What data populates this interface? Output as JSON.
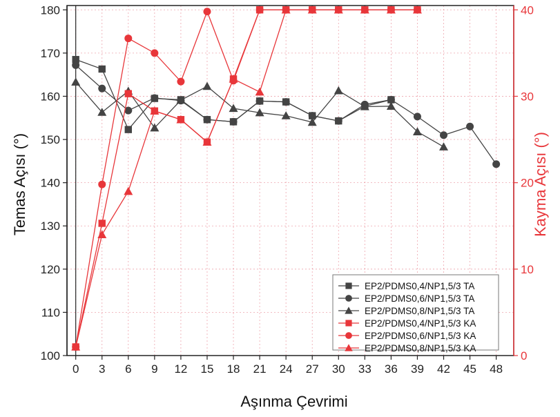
{
  "chart_data": {
    "type": "line",
    "xlabel": "Aşınma Çevrimi",
    "ylabel_left": "Temas Açısı (°)",
    "ylabel_right": "Kayma Açısı (°)",
    "x_ticks": [
      0,
      3,
      6,
      9,
      12,
      15,
      18,
      21,
      24,
      27,
      30,
      33,
      36,
      39,
      42,
      45,
      48
    ],
    "xlim": [
      -1,
      50
    ],
    "ylim_left": [
      100,
      181
    ],
    "yticks_left": [
      100,
      110,
      120,
      130,
      140,
      150,
      160,
      170,
      180
    ],
    "ylim_right": [
      0,
      40.5
    ],
    "yticks_right": [
      0,
      10,
      20,
      30,
      40
    ],
    "grid": true,
    "legend_position": "bottom-right",
    "colors": {
      "ta": "#444444",
      "ka": "#e8363a",
      "right_axis": "#e8363a",
      "grid": "#e05a6a"
    },
    "series": [
      {
        "name": "EP2/PDMS0,4/NP1,5/3 TA",
        "axis": "left",
        "marker": "square",
        "color": "#444444",
        "x": [
          0,
          3,
          6,
          9,
          12,
          15,
          18,
          21,
          24,
          27,
          30,
          33,
          36
        ],
        "y": [
          168.5,
          166.3,
          152.3,
          159.5,
          159.2,
          154.6,
          154.1,
          158.9,
          158.7,
          155.5,
          154.3,
          157.7,
          159.2
        ]
      },
      {
        "name": "EP2/PDMS0,6/NP1,5/3 TA",
        "axis": "left",
        "marker": "circle",
        "color": "#444444",
        "x": [
          0,
          3,
          6,
          9,
          12,
          15,
          18,
          21,
          24,
          27,
          30,
          33,
          36,
          39,
          42,
          45,
          48
        ],
        "y": [
          167.2,
          161.8,
          156.7,
          159.6,
          159.0,
          154.6,
          154.1,
          158.9,
          158.7,
          155.5,
          154.3,
          158.1,
          159.2,
          155.3,
          151.0,
          153.0,
          144.3
        ]
      },
      {
        "name": "EP2/PDMS0,8/NP1,5/3 TA",
        "axis": "left",
        "marker": "triangle",
        "color": "#444444",
        "x": [
          0,
          3,
          6,
          9,
          12,
          15,
          18,
          21,
          24,
          27,
          30,
          33,
          36,
          39,
          42
        ],
        "y": [
          163.3,
          156.3,
          161.2,
          152.7,
          159.1,
          162.3,
          157.2,
          156.2,
          155.5,
          154.0,
          161.3,
          157.6,
          157.7,
          151.8,
          148.3
        ]
      },
      {
        "name": "EP2/PDMS0,4/NP1,5/3 KA",
        "axis": "right",
        "marker": "square",
        "color": "#e8363a",
        "x": [
          0,
          3,
          6,
          9,
          12,
          15,
          18,
          21,
          24,
          27,
          30,
          33,
          36,
          39
        ],
        "y": [
          1.0,
          15.3,
          30.3,
          28.3,
          27.3,
          24.7,
          32.0,
          40.0,
          40.0,
          40.0,
          40.0,
          40.0,
          40.0,
          40.0
        ]
      },
      {
        "name": "EP2/PDMS0,6/NP1,5/3 KA",
        "axis": "right",
        "marker": "circle",
        "color": "#e8363a",
        "x": [
          0,
          3,
          6,
          9,
          12,
          15,
          18,
          21,
          24,
          27,
          30,
          33,
          36,
          39
        ],
        "y": [
          1.0,
          19.8,
          36.7,
          35.0,
          31.7,
          39.8,
          31.8,
          40.0,
          40.0,
          40.0,
          40.0,
          40.0,
          40.0,
          40.0
        ]
      },
      {
        "name": "EP2/PDMS0,8/NP1,5/3 KA",
        "axis": "right",
        "marker": "triangle",
        "color": "#e8363a",
        "x": [
          0,
          3,
          6,
          9,
          12,
          15,
          18,
          21,
          24,
          27,
          30,
          33,
          36,
          39
        ],
        "y": [
          1.0,
          14.0,
          19.0,
          28.3,
          27.3,
          24.7,
          32.0,
          30.5,
          40.0,
          40.0,
          40.0,
          40.0,
          40.0,
          40.0
        ]
      }
    ]
  }
}
